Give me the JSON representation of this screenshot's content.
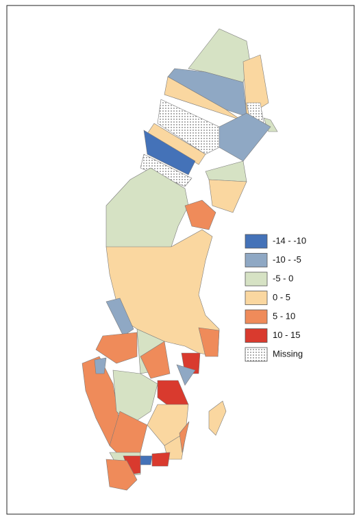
{
  "legend": {
    "items": [
      {
        "label": "-14 - -10",
        "color": "#4472b8"
      },
      {
        "label": "-10 - -5",
        "color": "#8fa8c4"
      },
      {
        "label": "-5 - 0",
        "color": "#d6e2c4"
      },
      {
        "label": "0 - 5",
        "color": "#fad7a0"
      },
      {
        "label": "5 - 10",
        "color": "#ef8b5a"
      },
      {
        "label": "10 - 15",
        "color": "#d93a2e"
      },
      {
        "label": "Missing",
        "color": "#ffffff",
        "pattern": "dots"
      }
    ]
  }
}
